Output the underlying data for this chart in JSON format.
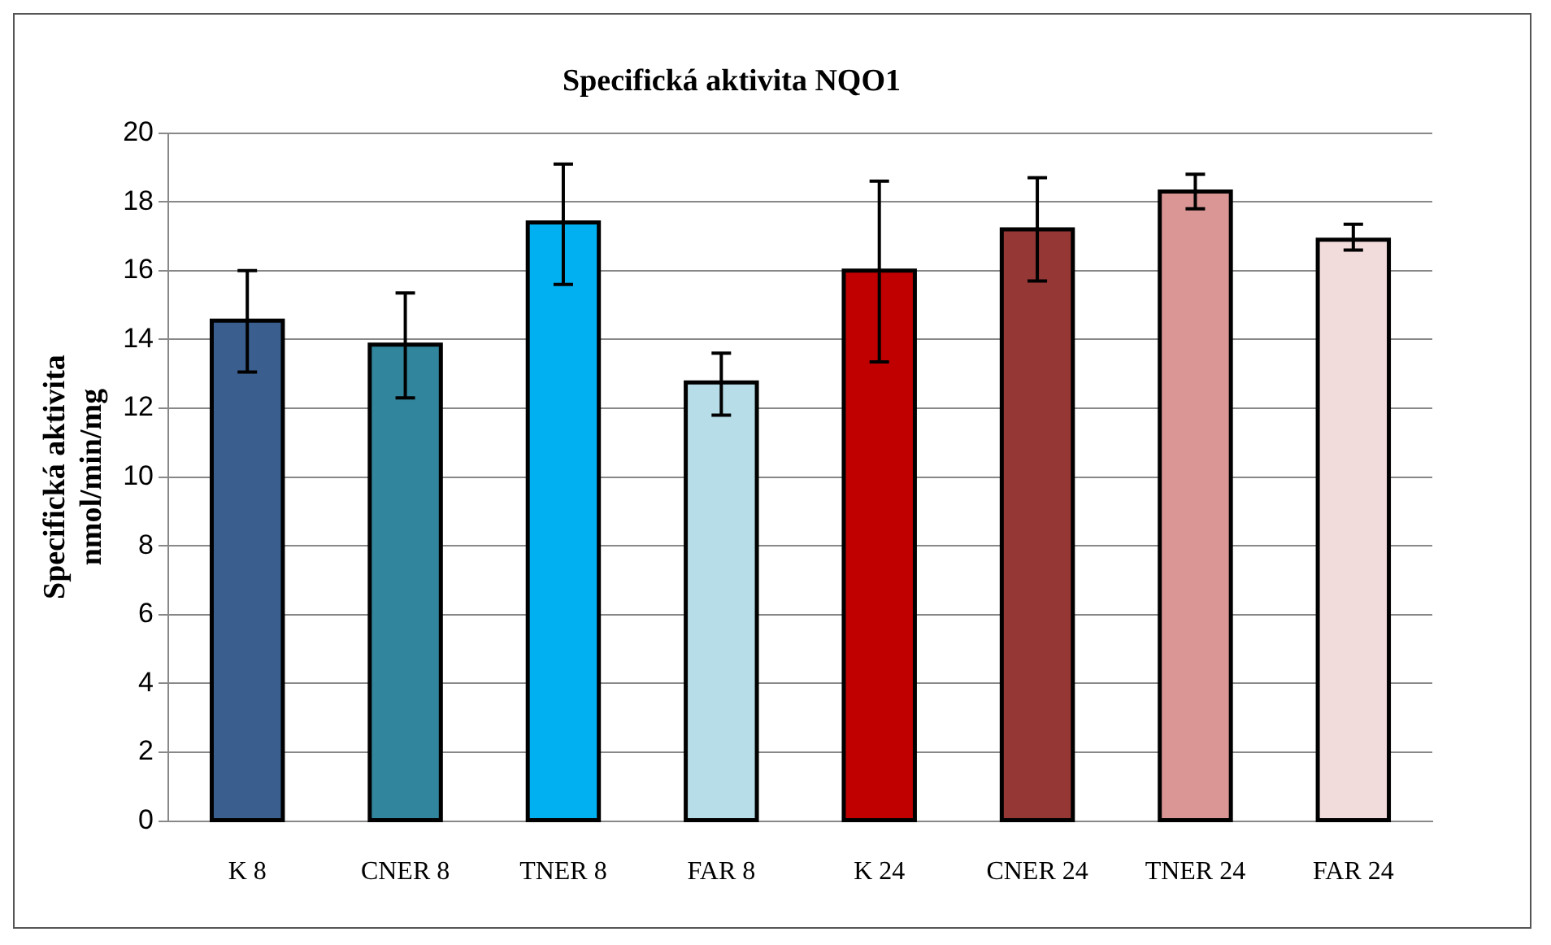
{
  "chart_data": {
    "type": "bar",
    "title": "Specifická aktivita NQO1",
    "ylabel": "Specifická aktivita\nnmol/min/mg",
    "categories": [
      "K 8",
      "CNER 8",
      "TNER 8",
      "FAR 8",
      "K 24",
      "CNER 24",
      "TNER 24",
      "FAR 24"
    ],
    "values": [
      14.55,
      13.85,
      17.4,
      12.75,
      16.0,
      17.2,
      18.3,
      16.9
    ],
    "colors": [
      "#3a5f8f",
      "#31859c",
      "#00b0f0",
      "#b7dde8",
      "#c00000",
      "#953735",
      "#d99694",
      "#f2dcdb"
    ],
    "errors": [
      [
        13.05,
        16.0
      ],
      [
        12.3,
        15.35
      ],
      [
        15.6,
        19.1
      ],
      [
        11.8,
        13.6
      ],
      [
        13.35,
        18.6
      ],
      [
        15.7,
        18.7
      ],
      [
        17.8,
        18.8
      ],
      [
        16.6,
        17.35
      ]
    ],
    "ylim": [
      0,
      20
    ],
    "yticks": [
      0,
      2,
      4,
      6,
      8,
      10,
      12,
      14,
      16,
      18,
      20
    ],
    "grid": "y"
  }
}
